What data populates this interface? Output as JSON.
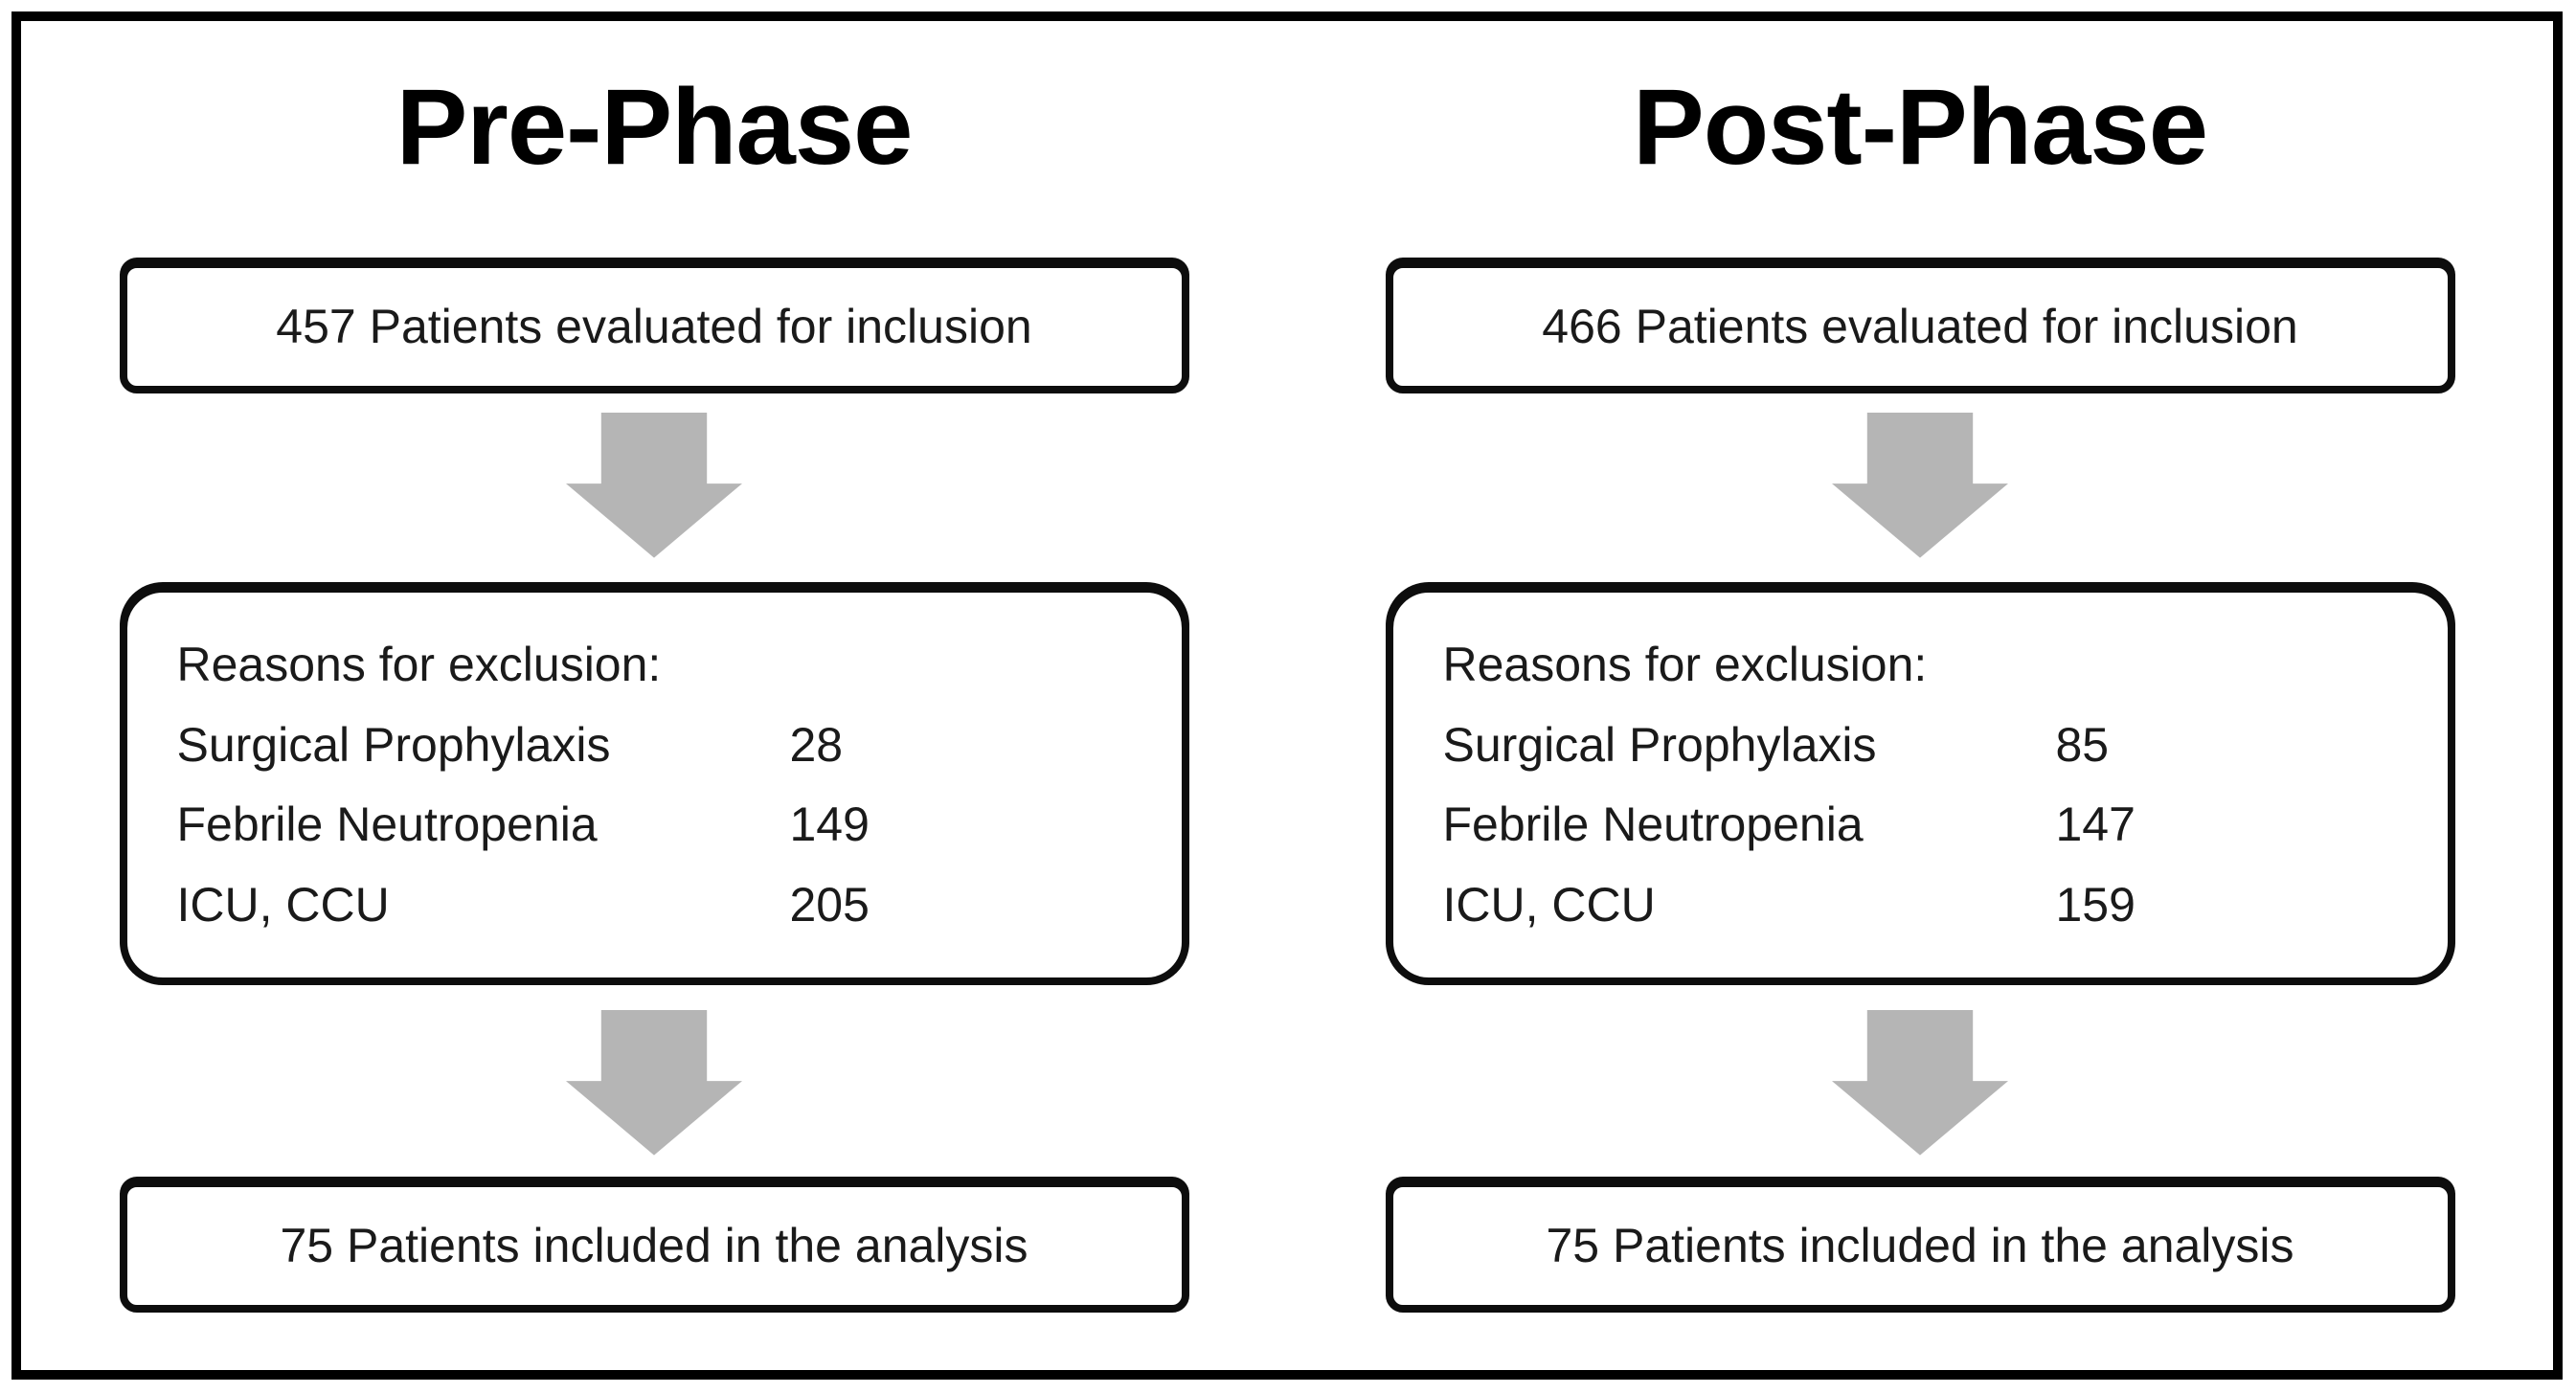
{
  "colors": {
    "background": "#ffffff",
    "frame_border": "#000000",
    "box_border": "#0d0d0d",
    "text": "#1a1a1a",
    "arrow": "#b5b5b5"
  },
  "columns": [
    {
      "title": "Pre-Phase",
      "evaluated_text": "457 Patients evaluated for inclusion",
      "exclusion_header": "Reasons for exclusion:",
      "exclusions": [
        {
          "label": "Surgical Prophylaxis",
          "count": "28"
        },
        {
          "label": "Febrile Neutropenia",
          "count": "149"
        },
        {
          "label": "ICU, CCU",
          "count": "205"
        }
      ],
      "included_text": "75 Patients included in the analysis"
    },
    {
      "title": "Post-Phase",
      "evaluated_text": "466 Patients evaluated for inclusion",
      "exclusion_header": "Reasons for exclusion:",
      "exclusions": [
        {
          "label": "Surgical Prophylaxis",
          "count": "85"
        },
        {
          "label": "Febrile Neutropenia",
          "count": "147"
        },
        {
          "label": "ICU, CCU",
          "count": "159"
        }
      ],
      "included_text": "75 Patients included in the analysis"
    }
  ]
}
